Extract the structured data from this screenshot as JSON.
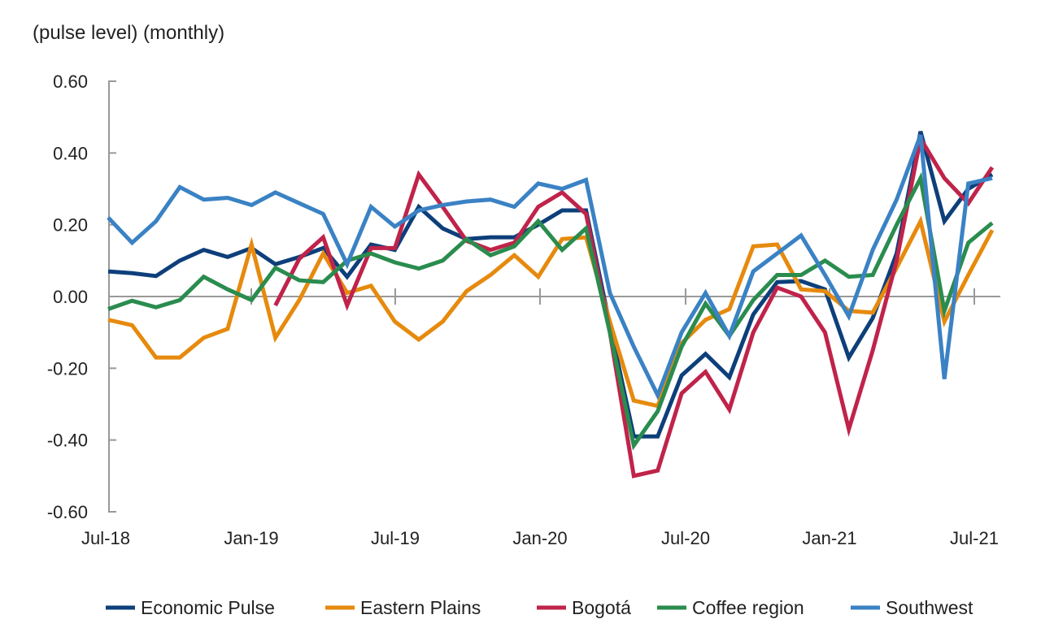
{
  "chart_data": {
    "type": "line",
    "title": "(pulse level) (monthly)",
    "xlabel": "",
    "ylabel": "",
    "ylim": [
      -0.6,
      0.6
    ],
    "yticks": [
      "0.60",
      "0.40",
      "0.20",
      "0.00",
      "-0.20",
      "-0.40",
      "-0.60"
    ],
    "ytick_values": [
      0.6,
      0.4,
      0.2,
      0.0,
      -0.2,
      -0.4,
      -0.6
    ],
    "x": [
      "Jul-18",
      "Aug-18",
      "Sep-18",
      "Oct-18",
      "Nov-18",
      "Dec-18",
      "Jan-19",
      "Feb-19",
      "Mar-19",
      "Apr-19",
      "May-19",
      "Jun-19",
      "Jul-19",
      "Aug-19",
      "Sep-19",
      "Oct-19",
      "Nov-19",
      "Dec-19",
      "Jan-20",
      "Feb-20",
      "Mar-20",
      "Apr-20",
      "May-20",
      "Jun-20",
      "Jul-20",
      "Aug-20",
      "Sep-20",
      "Oct-20",
      "Nov-20",
      "Dec-20",
      "Jan-21",
      "Feb-21",
      "Mar-21",
      "Apr-21",
      "May-21",
      "Jun-21",
      "Jul-21",
      "Aug-21"
    ],
    "xticks": [
      "Jul-18",
      "Jan-19",
      "Jul-19",
      "Jan-20",
      "Jul-20",
      "Jan-21",
      "Jul-21"
    ],
    "grid": false,
    "legend_position": "bottom",
    "series": [
      {
        "name": "Economic Pulse",
        "color": "#0d3f7a",
        "values": [
          0.07,
          0.065,
          0.057,
          0.1,
          0.13,
          0.11,
          0.135,
          0.09,
          0.11,
          0.135,
          0.055,
          0.145,
          0.13,
          0.25,
          0.19,
          0.16,
          0.165,
          0.165,
          0.2,
          0.24,
          0.24,
          -0.08,
          -0.39,
          -0.39,
          -0.22,
          -0.16,
          -0.225,
          -0.05,
          0.04,
          0.043,
          0.02,
          -0.17,
          -0.06,
          0.12,
          0.46,
          0.21,
          0.3,
          0.34
        ]
      },
      {
        "name": "Eastern Plains",
        "color": "#e68a0e",
        "values": [
          -0.065,
          -0.08,
          -0.17,
          -0.17,
          -0.115,
          -0.09,
          0.145,
          -0.115,
          -0.01,
          0.12,
          0.01,
          0.03,
          -0.07,
          -0.12,
          -0.07,
          0.015,
          0.06,
          0.115,
          0.055,
          0.16,
          0.165,
          -0.07,
          -0.29,
          -0.305,
          -0.13,
          -0.065,
          -0.035,
          0.14,
          0.145,
          0.02,
          0.015,
          -0.04,
          -0.045,
          0.08,
          0.21,
          -0.07,
          0.06,
          0.185
        ]
      },
      {
        "name": "Bogotá",
        "color": "#c0234a",
        "values": [
          null,
          null,
          null,
          null,
          null,
          null,
          null,
          -0.025,
          0.105,
          0.165,
          -0.025,
          0.135,
          0.135,
          0.34,
          0.25,
          0.155,
          0.13,
          0.15,
          0.25,
          0.29,
          0.23,
          -0.1,
          -0.5,
          -0.485,
          -0.27,
          -0.21,
          -0.315,
          -0.1,
          0.025,
          0.0,
          -0.1,
          -0.37,
          -0.15,
          0.1,
          0.44,
          0.33,
          0.26,
          0.36
        ]
      },
      {
        "name": "Coffee region",
        "color": "#2a8c4e",
        "values": [
          -0.035,
          -0.012,
          -0.03,
          -0.01,
          0.055,
          0.02,
          -0.01,
          0.08,
          0.045,
          0.04,
          0.1,
          0.12,
          0.095,
          0.078,
          0.1,
          0.16,
          0.115,
          0.14,
          0.21,
          0.13,
          0.19,
          -0.1,
          -0.415,
          -0.32,
          -0.14,
          -0.02,
          -0.11,
          -0.01,
          0.06,
          0.06,
          0.1,
          0.055,
          0.06,
          0.2,
          0.33,
          -0.04,
          0.15,
          0.205
        ]
      },
      {
        "name": "Southwest",
        "color": "#3a82c4",
        "values": [
          0.22,
          0.15,
          0.21,
          0.305,
          0.27,
          0.275,
          0.255,
          0.29,
          0.26,
          0.23,
          0.09,
          0.25,
          0.195,
          0.24,
          0.255,
          0.265,
          0.27,
          0.25,
          0.315,
          0.3,
          0.325,
          0.01,
          -0.14,
          -0.275,
          -0.1,
          0.01,
          -0.11,
          0.07,
          0.12,
          0.17,
          0.06,
          -0.055,
          0.13,
          0.27,
          0.45,
          -0.23,
          0.315,
          0.33
        ]
      }
    ]
  }
}
